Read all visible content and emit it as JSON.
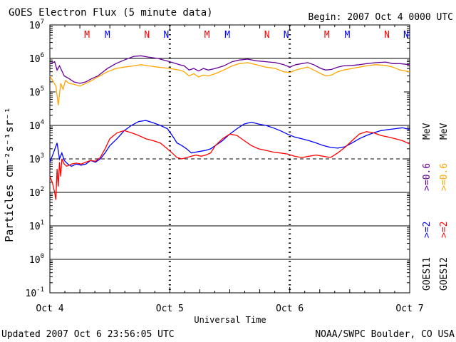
{
  "header": {
    "title": "GOES Electron Flux (5 minute data)",
    "begin": "Begin: 2007 Oct 4 0000 UTC"
  },
  "footer": {
    "updated": "Updated 2007 Oct  6 23:56:05 UTC",
    "credit": "NOAA/SWPC Boulder, CO USA"
  },
  "colors": {
    "goes11_ge2": "#0000ff",
    "goes11_ge06": "#660099",
    "goes12_ge2": "#ff0000",
    "goes12_ge06": "#ffa500",
    "alert_threshold": "#000000",
    "marker_M_goes12": "#ff0000",
    "marker_N_goes11": "#0000ff"
  },
  "chart_data": {
    "type": "line",
    "xlabel": "Universal Time",
    "ylabel": "Particles cm⁻²s⁻¹sr⁻¹",
    "x_tick_labels": [
      "Oct 4",
      "Oct 5",
      "Oct 6",
      "Oct 7"
    ],
    "x_unit": "days since 2007 Oct 4 0000 UTC",
    "xlim": [
      0,
      3
    ],
    "y_scale": "log",
    "ylim": [
      0.1,
      10000000
    ],
    "y_tick_labels": [
      {
        "base": "10",
        "exp": "7"
      },
      {
        "base": "10",
        "exp": "6"
      },
      {
        "base": "10",
        "exp": "5"
      },
      {
        "base": "10",
        "exp": "4"
      },
      {
        "base": "10",
        "exp": "3"
      },
      {
        "base": "10",
        "exp": "2"
      },
      {
        "base": "10",
        "exp": "1"
      },
      {
        "base": "10",
        "exp": "0"
      },
      {
        "base": "10",
        "exp": "-1"
      }
    ],
    "gridlines_y": [
      1000000,
      10000,
      100,
      10,
      1
    ],
    "threshold_dashed": 1000,
    "midnight_markers_x": [
      1,
      2
    ],
    "legend": {
      "goes11": "GOES11",
      "goes12": "GOES12",
      "ge2": ">=2",
      "ge06": ">=0.6",
      "unit": "MeV"
    },
    "top_markers": [
      {
        "label": "M",
        "x": 0.31,
        "sat": "goes12"
      },
      {
        "label": "M",
        "x": 0.48,
        "sat": "goes11"
      },
      {
        "label": "N",
        "x": 0.81,
        "sat": "goes12"
      },
      {
        "label": "N",
        "x": 0.97,
        "sat": "goes11"
      },
      {
        "label": "M",
        "x": 1.31,
        "sat": "goes12"
      },
      {
        "label": "M",
        "x": 1.48,
        "sat": "goes11"
      },
      {
        "label": "N",
        "x": 1.81,
        "sat": "goes12"
      },
      {
        "label": "N",
        "x": 1.97,
        "sat": "goes11"
      },
      {
        "label": "M",
        "x": 2.31,
        "sat": "goes12"
      },
      {
        "label": "M",
        "x": 2.48,
        "sat": "goes11"
      },
      {
        "label": "N",
        "x": 2.81,
        "sat": "goes12"
      },
      {
        "label": "N",
        "x": 2.97,
        "sat": "goes11"
      }
    ],
    "series": [
      {
        "name": "GOES11 >=0.6 MeV",
        "color": "#660099",
        "x": [
          0.0,
          0.04,
          0.06,
          0.08,
          0.12,
          0.16,
          0.2,
          0.25,
          0.3,
          0.35,
          0.4,
          0.48,
          0.55,
          0.62,
          0.7,
          0.76,
          0.82,
          0.9,
          1.0,
          1.08,
          1.12,
          1.16,
          1.2,
          1.24,
          1.28,
          1.32,
          1.38,
          1.45,
          1.52,
          1.58,
          1.65,
          1.72,
          1.8,
          1.88,
          1.95,
          2.0,
          2.05,
          2.1,
          2.15,
          2.2,
          2.26,
          2.3,
          2.35,
          2.4,
          2.45,
          2.52,
          2.58,
          2.64,
          2.72,
          2.8,
          2.86,
          2.92,
          3.0
        ],
        "y": [
          700000,
          800000,
          450000,
          600000,
          300000,
          250000,
          200000,
          180000,
          200000,
          250000,
          300000,
          500000,
          700000,
          900000,
          1150000,
          1200000,
          1100000,
          1000000,
          800000,
          650000,
          600000,
          450000,
          500000,
          420000,
          500000,
          450000,
          500000,
          600000,
          800000,
          900000,
          950000,
          850000,
          800000,
          750000,
          650000,
          550000,
          650000,
          700000,
          750000,
          650000,
          500000,
          450000,
          470000,
          550000,
          600000,
          620000,
          650000,
          700000,
          750000,
          780000,
          700000,
          700000,
          650000
        ]
      },
      {
        "name": "GOES12 >=0.6 MeV",
        "color": "#ffa500",
        "x": [
          0.0,
          0.03,
          0.05,
          0.07,
          0.09,
          0.11,
          0.13,
          0.16,
          0.2,
          0.25,
          0.3,
          0.35,
          0.4,
          0.48,
          0.55,
          0.62,
          0.7,
          0.76,
          0.82,
          0.9,
          1.0,
          1.08,
          1.12,
          1.16,
          1.2,
          1.24,
          1.28,
          1.32,
          1.38,
          1.45,
          1.52,
          1.58,
          1.65,
          1.72,
          1.8,
          1.88,
          1.95,
          2.0,
          2.05,
          2.1,
          2.15,
          2.2,
          2.26,
          2.3,
          2.35,
          2.4,
          2.45,
          2.52,
          2.58,
          2.64,
          2.72,
          2.8,
          2.86,
          2.92,
          3.0
        ],
        "y": [
          300000,
          200000,
          150000,
          40000,
          180000,
          120000,
          220000,
          180000,
          170000,
          150000,
          180000,
          220000,
          280000,
          400000,
          500000,
          550000,
          600000,
          650000,
          600000,
          550000,
          500000,
          450000,
          400000,
          300000,
          350000,
          280000,
          320000,
          300000,
          350000,
          450000,
          600000,
          700000,
          750000,
          650000,
          550000,
          500000,
          400000,
          380000,
          450000,
          500000,
          550000,
          450000,
          350000,
          300000,
          320000,
          400000,
          450000,
          500000,
          550000,
          600000,
          650000,
          620000,
          550000,
          450000,
          400000
        ]
      },
      {
        "name": "GOES11 >=2 MeV",
        "color": "#0000ff",
        "x": [
          0.0,
          0.03,
          0.06,
          0.08,
          0.1,
          0.12,
          0.15,
          0.18,
          0.22,
          0.26,
          0.3,
          0.34,
          0.38,
          0.42,
          0.46,
          0.5,
          0.56,
          0.62,
          0.68,
          0.74,
          0.8,
          0.86,
          0.92,
          0.98,
          1.02,
          1.06,
          1.1,
          1.14,
          1.18,
          1.22,
          1.26,
          1.3,
          1.34,
          1.38,
          1.44,
          1.5,
          1.56,
          1.62,
          1.68,
          1.74,
          1.8,
          1.86,
          1.92,
          1.98,
          2.04,
          2.1,
          2.16,
          2.22,
          2.28,
          2.34,
          2.4,
          2.46,
          2.52,
          2.58,
          2.64,
          2.7,
          2.76,
          2.82,
          2.88,
          2.94,
          3.0
        ],
        "y": [
          800,
          1500,
          3000,
          1000,
          1500,
          900,
          700,
          600,
          700,
          650,
          700,
          900,
          800,
          1000,
          1500,
          2500,
          4000,
          7000,
          10000,
          13000,
          14000,
          12000,
          10000,
          8000,
          5000,
          3000,
          2500,
          2000,
          1500,
          1600,
          1700,
          1800,
          2000,
          2500,
          3500,
          5500,
          8000,
          11000,
          12500,
          11000,
          10000,
          8500,
          7000,
          5500,
          4500,
          4000,
          3500,
          3000,
          2500,
          2200,
          2100,
          2300,
          3000,
          4000,
          5000,
          6000,
          7000,
          7500,
          8000,
          8500,
          7500
        ]
      },
      {
        "name": "GOES12 >=2 MeV",
        "color": "#ff0000",
        "x": [
          0.0,
          0.02,
          0.04,
          0.05,
          0.06,
          0.07,
          0.08,
          0.09,
          0.1,
          0.12,
          0.14,
          0.16,
          0.18,
          0.22,
          0.26,
          0.3,
          0.34,
          0.38,
          0.42,
          0.46,
          0.5,
          0.56,
          0.62,
          0.68,
          0.74,
          0.8,
          0.86,
          0.92,
          0.98,
          1.02,
          1.06,
          1.1,
          1.14,
          1.18,
          1.22,
          1.26,
          1.3,
          1.34,
          1.38,
          1.44,
          1.5,
          1.56,
          1.62,
          1.68,
          1.74,
          1.8,
          1.86,
          1.92,
          1.98,
          2.04,
          2.1,
          2.16,
          2.22,
          2.28,
          2.34,
          2.4,
          2.46,
          2.52,
          2.58,
          2.64,
          2.7,
          2.76,
          2.82,
          2.88,
          2.94,
          3.0
        ],
        "y": [
          300,
          200,
          100,
          60,
          500,
          150,
          800,
          300,
          1000,
          700,
          600,
          650,
          700,
          750,
          700,
          800,
          900,
          850,
          1100,
          2000,
          4000,
          6000,
          7000,
          6000,
          5000,
          4000,
          3500,
          3000,
          2000,
          1500,
          1100,
          1000,
          1100,
          1200,
          1300,
          1200,
          1300,
          1500,
          2500,
          4000,
          5500,
          5000,
          3500,
          2500,
          2000,
          1800,
          1600,
          1500,
          1400,
          1200,
          1100,
          1200,
          1300,
          1200,
          1100,
          1500,
          2200,
          3500,
          5500,
          6500,
          6000,
          5000,
          4500,
          4000,
          3500,
          2800
        ]
      }
    ]
  }
}
